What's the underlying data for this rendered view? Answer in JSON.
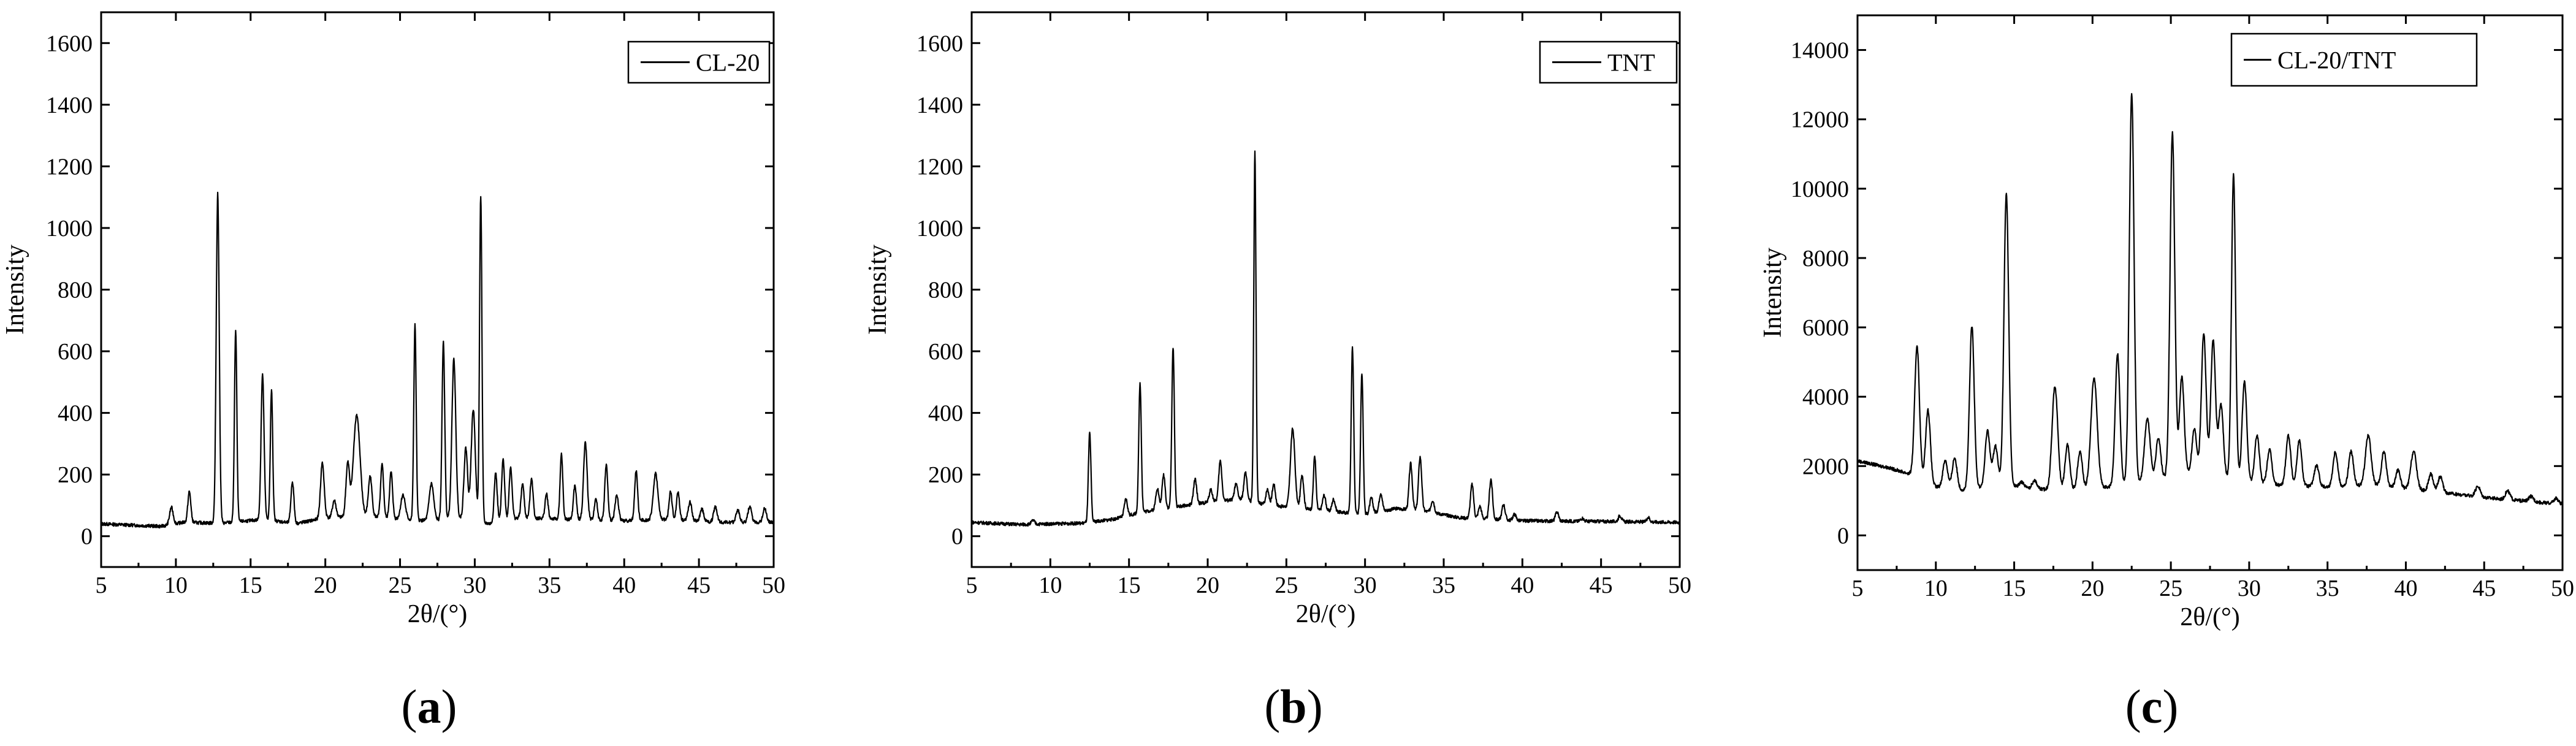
{
  "captions": [
    {
      "open": "(",
      "letter": "a",
      "close": ")"
    },
    {
      "open": "(",
      "letter": "b",
      "close": ")"
    },
    {
      "open": "(",
      "letter": "c",
      "close": ")"
    }
  ],
  "colors": {
    "line": "#000000",
    "background": "#ffffff"
  },
  "chart_data": [
    {
      "type": "line",
      "xlabel": "2θ/(°)",
      "ylabel": "Intensity",
      "xlim": [
        5,
        50
      ],
      "ylim": [
        -100,
        1700
      ],
      "xticks": [
        5,
        10,
        15,
        20,
        25,
        30,
        35,
        40,
        45,
        50
      ],
      "yticks": [
        0,
        200,
        400,
        600,
        800,
        1000,
        1200,
        1400,
        1600
      ],
      "grid": false,
      "legend": "top-right",
      "series": [
        {
          "name": "CL-20",
          "baseline": [
            [
              5,
              40
            ],
            [
              9,
              32
            ],
            [
              10.5,
              45
            ],
            [
              13,
              42
            ],
            [
              16,
              55
            ],
            [
              18,
              40
            ],
            [
              20,
              60
            ],
            [
              23,
              65
            ],
            [
              25,
              55
            ],
            [
              27,
              50
            ],
            [
              29,
              60
            ],
            [
              31,
              40
            ],
            [
              33,
              60
            ],
            [
              36,
              55
            ],
            [
              40,
              50
            ],
            [
              43,
              55
            ],
            [
              46,
              45
            ],
            [
              50,
              45
            ]
          ],
          "peaks": [
            [
              9.7,
              55,
              0.12
            ],
            [
              10.9,
              100,
              0.1
            ],
            [
              12.8,
              1070,
              0.1
            ],
            [
              14.0,
              620,
              0.08
            ],
            [
              15.8,
              470,
              0.1
            ],
            [
              16.4,
              420,
              0.08
            ],
            [
              17.8,
              135,
              0.1
            ],
            [
              19.8,
              180,
              0.12
            ],
            [
              20.6,
              55,
              0.12
            ],
            [
              21.5,
              170,
              0.12
            ],
            [
              22.1,
              330,
              0.22
            ],
            [
              23.0,
              130,
              0.12
            ],
            [
              23.8,
              170,
              0.1
            ],
            [
              24.4,
              150,
              0.1
            ],
            [
              25.2,
              80,
              0.15
            ],
            [
              26.0,
              635,
              0.08
            ],
            [
              27.1,
              120,
              0.15
            ],
            [
              27.9,
              580,
              0.09
            ],
            [
              28.6,
              515,
              0.13
            ],
            [
              29.4,
              230,
              0.12
            ],
            [
              29.9,
              360,
              0.14
            ],
            [
              30.4,
              1060,
              0.08
            ],
            [
              31.4,
              160,
              0.1
            ],
            [
              31.9,
              200,
              0.1
            ],
            [
              32.4,
              170,
              0.1
            ],
            [
              33.2,
              110,
              0.1
            ],
            [
              33.8,
              130,
              0.1
            ],
            [
              34.8,
              80,
              0.1
            ],
            [
              35.8,
              210,
              0.09
            ],
            [
              36.7,
              110,
              0.1
            ],
            [
              37.4,
              250,
              0.12
            ],
            [
              38.1,
              70,
              0.1
            ],
            [
              38.8,
              180,
              0.1
            ],
            [
              39.5,
              80,
              0.12
            ],
            [
              40.8,
              160,
              0.1
            ],
            [
              42.1,
              150,
              0.15
            ],
            [
              43.1,
              90,
              0.1
            ],
            [
              43.6,
              90,
              0.1
            ],
            [
              44.4,
              60,
              0.12
            ],
            [
              45.2,
              40,
              0.12
            ],
            [
              46.1,
              50,
              0.12
            ],
            [
              47.6,
              40,
              0.12
            ],
            [
              48.4,
              50,
              0.12
            ],
            [
              49.4,
              45,
              0.12
            ]
          ]
        }
      ]
    },
    {
      "type": "line",
      "xlabel": "2θ/(°)",
      "ylabel": "Intensity",
      "xlim": [
        5,
        50
      ],
      "ylim": [
        -100,
        1700
      ],
      "xticks": [
        5,
        10,
        15,
        20,
        25,
        30,
        35,
        40,
        45,
        50
      ],
      "yticks": [
        0,
        200,
        400,
        600,
        800,
        1000,
        1200,
        1400,
        1600
      ],
      "grid": false,
      "legend": "top-right",
      "series": [
        {
          "name": "TNT",
          "baseline": [
            [
              5,
              45
            ],
            [
              8,
              38
            ],
            [
              10,
              40
            ],
            [
              12,
              42
            ],
            [
              14,
              55
            ],
            [
              16,
              80
            ],
            [
              18,
              95
            ],
            [
              20,
              110
            ],
            [
              22,
              120
            ],
            [
              24,
              100
            ],
            [
              26,
              90
            ],
            [
              28,
              80
            ],
            [
              30,
              70
            ],
            [
              32,
              90
            ],
            [
              34,
              80
            ],
            [
              36,
              60
            ],
            [
              40,
              50
            ],
            [
              45,
              48
            ],
            [
              50,
              45
            ]
          ],
          "peaks": [
            [
              8.9,
              12,
              0.1
            ],
            [
              12.5,
              290,
              0.08
            ],
            [
              14.8,
              55,
              0.1
            ],
            [
              15.7,
              420,
              0.08
            ],
            [
              16.8,
              70,
              0.1
            ],
            [
              17.2,
              110,
              0.1
            ],
            [
              17.8,
              520,
              0.08
            ],
            [
              19.2,
              80,
              0.1
            ],
            [
              20.2,
              40,
              0.1
            ],
            [
              20.8,
              130,
              0.1
            ],
            [
              21.8,
              50,
              0.1
            ],
            [
              22.4,
              90,
              0.1
            ],
            [
              23.0,
              1140,
              0.07
            ],
            [
              23.8,
              50,
              0.1
            ],
            [
              24.2,
              70,
              0.1
            ],
            [
              25.4,
              255,
              0.14
            ],
            [
              26.0,
              110,
              0.1
            ],
            [
              26.8,
              175,
              0.08
            ],
            [
              27.4,
              50,
              0.1
            ],
            [
              28.0,
              40,
              0.1
            ],
            [
              29.2,
              540,
              0.08
            ],
            [
              29.8,
              460,
              0.08
            ],
            [
              30.4,
              50,
              0.1
            ],
            [
              31.0,
              60,
              0.1
            ],
            [
              32.9,
              150,
              0.1
            ],
            [
              33.5,
              175,
              0.1
            ],
            [
              34.3,
              40,
              0.1
            ],
            [
              36.8,
              110,
              0.1
            ],
            [
              37.3,
              40,
              0.1
            ],
            [
              38.0,
              130,
              0.1
            ],
            [
              38.8,
              50,
              0.1
            ],
            [
              39.5,
              20,
              0.1
            ],
            [
              42.2,
              30,
              0.1
            ],
            [
              43.8,
              10,
              0.1
            ],
            [
              46.2,
              20,
              0.1
            ],
            [
              48.0,
              15,
              0.1
            ]
          ]
        }
      ]
    },
    {
      "type": "line",
      "xlabel": "2θ/(°)",
      "ylabel": "Intensity",
      "xlim": [
        5,
        50
      ],
      "ylim": [
        -1000,
        15000
      ],
      "xticks": [
        5,
        10,
        15,
        20,
        25,
        30,
        35,
        40,
        45,
        50
      ],
      "yticks": [
        0,
        2000,
        4000,
        6000,
        8000,
        10000,
        12000,
        14000
      ],
      "grid": false,
      "legend": "top-right",
      "series": [
        {
          "name": "CL-20/TNT",
          "baseline": [
            [
              5,
              2150
            ],
            [
              7,
              1950
            ],
            [
              8.5,
              1750
            ],
            [
              10,
              1400
            ],
            [
              12,
              1300
            ],
            [
              14,
              1500
            ],
            [
              16,
              1350
            ],
            [
              18,
              1300
            ],
            [
              20,
              1350
            ],
            [
              22,
              1450
            ],
            [
              24,
              1600
            ],
            [
              26,
              1800
            ],
            [
              28,
              1700
            ],
            [
              30,
              1500
            ],
            [
              32,
              1450
            ],
            [
              35,
              1400
            ],
            [
              38,
              1450
            ],
            [
              40,
              1350
            ],
            [
              43,
              1200
            ],
            [
              46,
              1050
            ],
            [
              50,
              900
            ]
          ],
          "peaks": [
            [
              8.8,
              3800,
              0.15
            ],
            [
              9.5,
              2100,
              0.15
            ],
            [
              10.6,
              800,
              0.15
            ],
            [
              11.2,
              900,
              0.15
            ],
            [
              12.3,
              4700,
              0.15
            ],
            [
              13.3,
              1600,
              0.15
            ],
            [
              13.8,
              1100,
              0.15
            ],
            [
              14.5,
              8400,
              0.15
            ],
            [
              15.5,
              150,
              0.15
            ],
            [
              16.3,
              250,
              0.15
            ],
            [
              17.6,
              3000,
              0.18
            ],
            [
              18.4,
              1300,
              0.15
            ],
            [
              19.2,
              1100,
              0.15
            ],
            [
              20.1,
              3200,
              0.2
            ],
            [
              21.6,
              3800,
              0.15
            ],
            [
              22.5,
              11300,
              0.15
            ],
            [
              23.5,
              1800,
              0.18
            ],
            [
              24.2,
              1200,
              0.15
            ],
            [
              25.1,
              9900,
              0.15
            ],
            [
              25.7,
              2800,
              0.15
            ],
            [
              26.5,
              1300,
              0.15
            ],
            [
              27.1,
              4100,
              0.15
            ],
            [
              27.7,
              3900,
              0.15
            ],
            [
              28.2,
              2100,
              0.15
            ],
            [
              29.0,
              8800,
              0.13
            ],
            [
              29.7,
              2900,
              0.15
            ],
            [
              30.5,
              1400,
              0.15
            ],
            [
              31.3,
              1000,
              0.15
            ],
            [
              32.5,
              1450,
              0.15
            ],
            [
              33.2,
              1300,
              0.15
            ],
            [
              34.3,
              600,
              0.15
            ],
            [
              35.5,
              1000,
              0.15
            ],
            [
              36.5,
              1000,
              0.15
            ],
            [
              37.6,
              1450,
              0.18
            ],
            [
              38.6,
              1000,
              0.15
            ],
            [
              39.5,
              500,
              0.15
            ],
            [
              40.5,
              1100,
              0.18
            ],
            [
              41.6,
              500,
              0.15
            ],
            [
              42.2,
              450,
              0.15
            ],
            [
              44.6,
              300,
              0.15
            ],
            [
              46.5,
              250,
              0.15
            ],
            [
              48.0,
              150,
              0.15
            ],
            [
              49.6,
              150,
              0.15
            ]
          ]
        }
      ]
    }
  ]
}
